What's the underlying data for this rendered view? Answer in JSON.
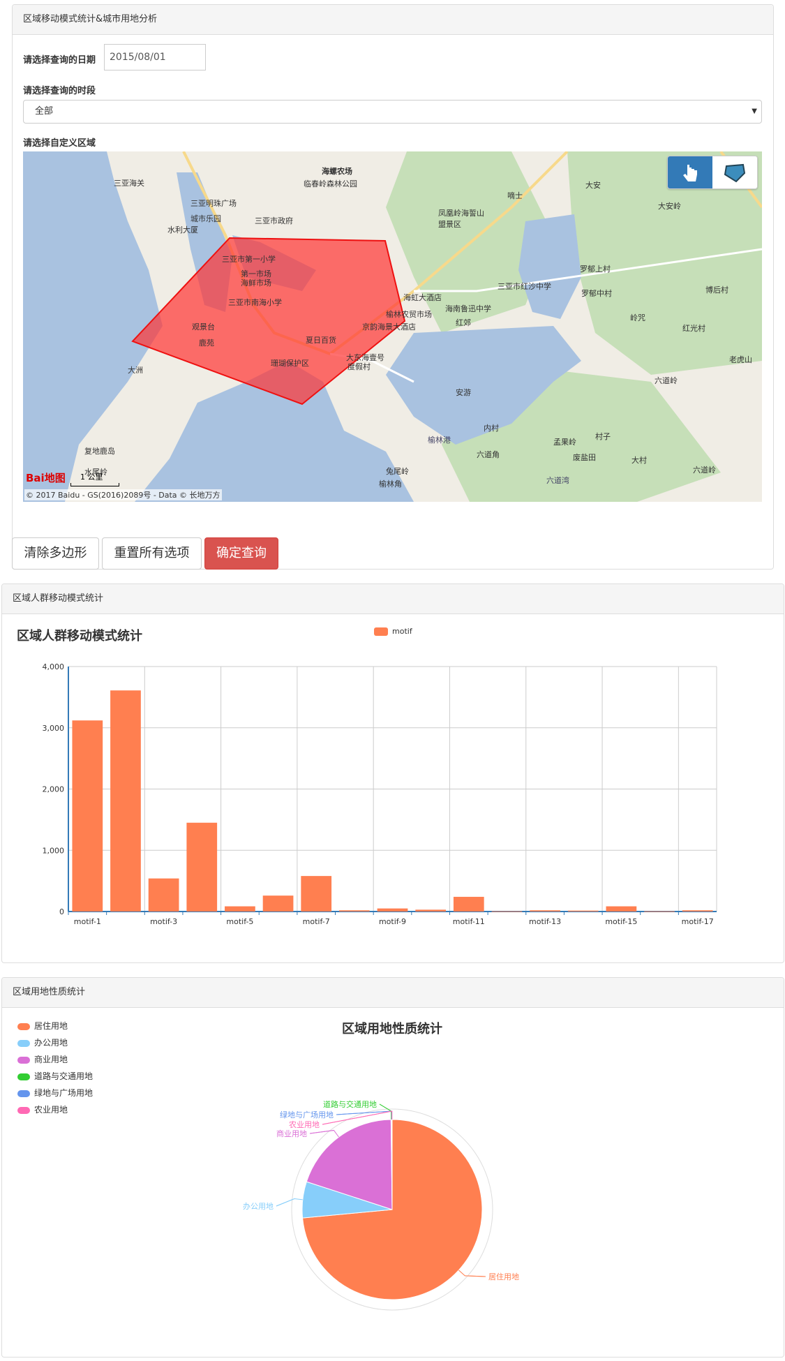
{
  "panel1": {
    "title": "区域移动模式统计&城市用地分析",
    "date_label": "请选择查询的日期",
    "date_value": "2015/08/01",
    "period_label": "请选择查询的时段",
    "period_value": "全部",
    "region_label": "请选择自定义区域",
    "map": {
      "copyright": "© 2017 Baidu - GS(2016)2089号 - Data © 长地万方",
      "scale": "1 公里",
      "logo": "Bai地图",
      "labels": [
        "三亚海关",
        "海螺农场",
        "临春岭森林公园",
        "三亚明珠广场",
        "城市乐园",
        "三亚市政府",
        "水利大厦",
        "三亚市第一小学",
        "第一市场",
        "海鲜市场",
        "三亚市南海小学",
        "观景台",
        "鹿苑",
        "夏日百货",
        "珊瑚保护区",
        "大东海壹号",
        "度假村",
        "榆林",
        "榆林农贸市场",
        "京韵海景大酒店",
        "海虹大酒店",
        "海南鲁迅中学",
        "三亚市红沙中学",
        "红郊",
        "凤凰岭海誓山盟景区",
        "嘀士",
        "大安",
        "大安岭",
        "罗郁上村",
        "罗郁中村",
        "岭咒",
        "博后村",
        "红光村",
        "老虎山",
        "六道岭",
        "安游",
        "内村",
        "孟果岭",
        "六道角",
        "村子",
        "废盐田",
        "大村",
        "六道湾",
        "六道岭",
        "榆林港",
        "复地鹿岛",
        "水尾岭",
        "兔尾岭",
        "榆林角",
        "大洲"
      ]
    },
    "buttons": {
      "clear": "清除多边形",
      "reset": "重置所有选项",
      "query": "确定查询"
    }
  },
  "panel2": {
    "title": "区域人群移动模式统计"
  },
  "panel3": {
    "title": "区域用地性质统计"
  },
  "colors": {
    "bar": "#ff7f50",
    "polygon_fill": "#ff3333",
    "polygon_stroke": "#ee1111",
    "danger": "#d9534f",
    "primary": "#337ab7"
  },
  "chart_data": [
    {
      "type": "bar",
      "title": "区域人群移动模式统计",
      "legend": [
        "motif"
      ],
      "legend_position": "top-center",
      "categories": [
        "motif-1",
        "motif-2",
        "motif-3",
        "motif-4",
        "motif-5",
        "motif-6",
        "motif-7",
        "motif-8",
        "motif-9",
        "motif-10",
        "motif-11",
        "motif-12",
        "motif-13",
        "motif-14",
        "motif-15",
        "motif-16",
        "motif-17"
      ],
      "tick_labels_shown": [
        "motif-1",
        "motif-3",
        "motif-5",
        "motif-7",
        "motif-9",
        "motif-11",
        "motif-13",
        "motif-15",
        "motif-17"
      ],
      "series": [
        {
          "name": "motif",
          "values": [
            3120,
            3610,
            540,
            1450,
            85,
            260,
            580,
            20,
            50,
            30,
            240,
            5,
            20,
            15,
            85,
            5,
            20
          ]
        }
      ],
      "ylim": [
        0,
        4000
      ],
      "yticks": [
        "0",
        "1,000",
        "2,000",
        "3,000",
        "4,000"
      ],
      "grid": true
    },
    {
      "type": "pie",
      "title": "区域用地性质统计",
      "legend_position": "top-left",
      "slices": [
        {
          "name": "居住用地",
          "value": 73.5,
          "color": "#ff7f50"
        },
        {
          "name": "办公用地",
          "value": 6.5,
          "color": "#87cefa"
        },
        {
          "name": "商业用地",
          "value": 19.8,
          "color": "#da70d6"
        },
        {
          "name": "道路与交通用地",
          "value": 0.1,
          "color": "#32cd32"
        },
        {
          "name": "绿地与广场用地",
          "value": 0.05,
          "color": "#6495ed"
        },
        {
          "name": "农业用地",
          "value": 0.05,
          "color": "#ff69b4"
        }
      ]
    }
  ]
}
